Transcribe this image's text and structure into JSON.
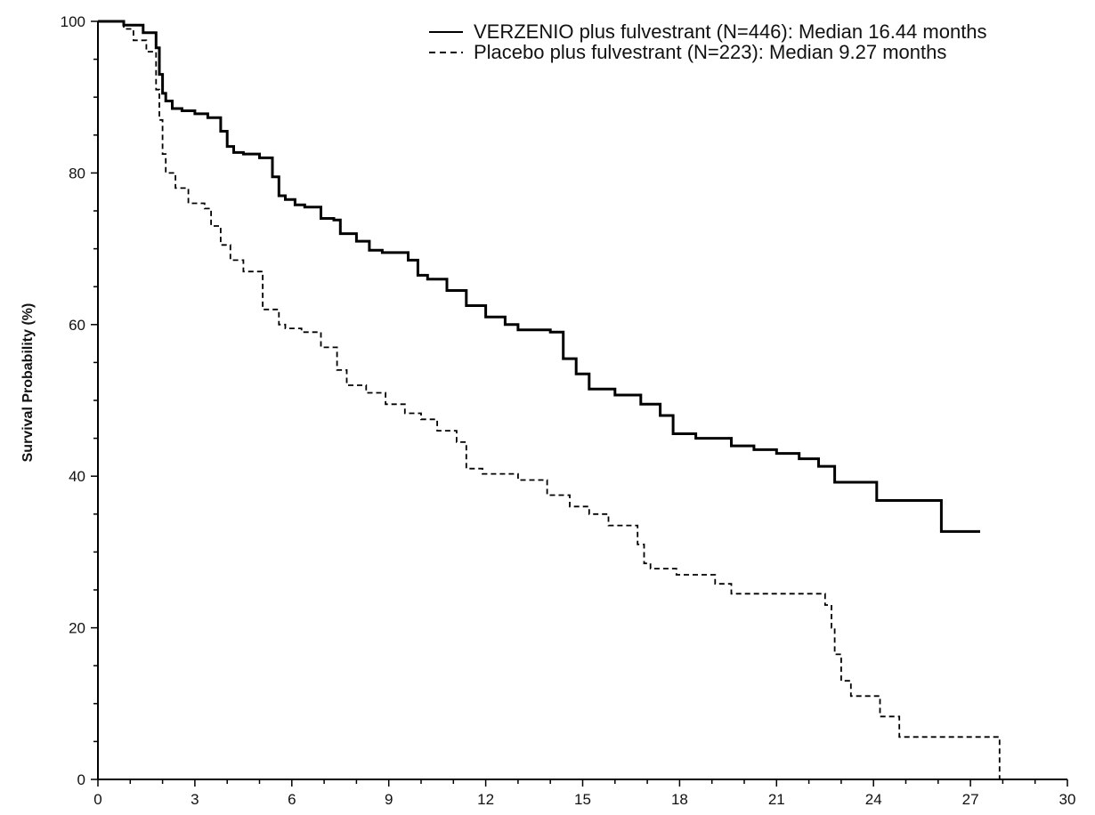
{
  "chart_data": {
    "type": "line",
    "step": true,
    "title": "",
    "xlabel": "",
    "ylabel": "Survival Probability (%)",
    "xlim": [
      0,
      30
    ],
    "ylim": [
      0,
      100
    ],
    "x_ticks": [
      "0",
      "3",
      "6",
      "9",
      "12",
      "15",
      "18",
      "21",
      "24",
      "27",
      "30"
    ],
    "y_ticks": [
      "0",
      "20",
      "40",
      "60",
      "80",
      "100"
    ],
    "grid": false,
    "legend_position": "top-right",
    "series": [
      {
        "name": "VERZENIO plus fulvestrant (N=446): Median 16.44 months",
        "style": "solid",
        "color": "#000000",
        "x": [
          0,
          0.8,
          1.4,
          1.8,
          1.9,
          2.0,
          2.1,
          2.3,
          2.6,
          3.0,
          3.4,
          3.8,
          4.0,
          4.2,
          4.5,
          5.0,
          5.4,
          5.6,
          5.8,
          6.1,
          6.4,
          6.9,
          7.3,
          7.5,
          8.0,
          8.4,
          8.8,
          9.6,
          9.9,
          10.2,
          10.8,
          11.4,
          12.0,
          12.6,
          13.0,
          14.0,
          14.4,
          14.8,
          15.2,
          16.0,
          16.8,
          17.4,
          17.8,
          18.5,
          19.6,
          20.3,
          21.0,
          21.7,
          22.3,
          22.8,
          24.1,
          26.1,
          27.3
        ],
        "y": [
          100,
          99.5,
          98.5,
          96.5,
          93,
          90.5,
          89.5,
          88.5,
          88.2,
          87.8,
          87.3,
          85.5,
          83.5,
          82.7,
          82.5,
          82,
          79.5,
          77,
          76.5,
          75.8,
          75.5,
          74,
          73.8,
          72,
          71,
          69.8,
          69.5,
          68.5,
          66.5,
          66,
          64.5,
          62.5,
          61,
          60,
          59.3,
          59,
          55.5,
          53.5,
          51.5,
          50.7,
          49.5,
          48,
          45.6,
          45,
          44,
          43.5,
          43,
          42.3,
          41.3,
          39.2,
          36.8,
          32.7,
          32.7
        ]
      },
      {
        "name": "Placebo plus fulvestrant (N=223): Median 9.27 months",
        "style": "dashed",
        "color": "#000000",
        "x": [
          0,
          0.8,
          1.1,
          1.5,
          1.8,
          1.9,
          2.0,
          2.1,
          2.4,
          2.8,
          3.3,
          3.5,
          3.8,
          4.1,
          4.5,
          5.1,
          5.6,
          5.8,
          6.3,
          6.9,
          7.4,
          7.7,
          8.3,
          8.9,
          9.5,
          10.0,
          10.5,
          11.1,
          11.4,
          11.9,
          13.0,
          13.9,
          14.6,
          15.2,
          15.8,
          16.7,
          16.9,
          17.1,
          17.9,
          19.1,
          19.6,
          22.5,
          22.7,
          22.8,
          23.0,
          23.3,
          24.2,
          24.8,
          27.9
        ],
        "y": [
          100,
          99,
          97.5,
          96,
          91,
          87,
          82.5,
          80,
          78,
          76,
          75.3,
          73,
          70.5,
          68.5,
          67,
          62,
          60,
          59.5,
          59,
          57,
          54,
          52,
          51,
          49.5,
          48.3,
          47.5,
          46,
          44.5,
          41,
          40.3,
          39.5,
          37.5,
          36,
          35,
          33.5,
          31,
          28.5,
          27.8,
          27,
          25.8,
          24.5,
          23,
          20,
          16.5,
          13,
          11,
          8.3,
          5.6,
          0
        ]
      }
    ]
  }
}
